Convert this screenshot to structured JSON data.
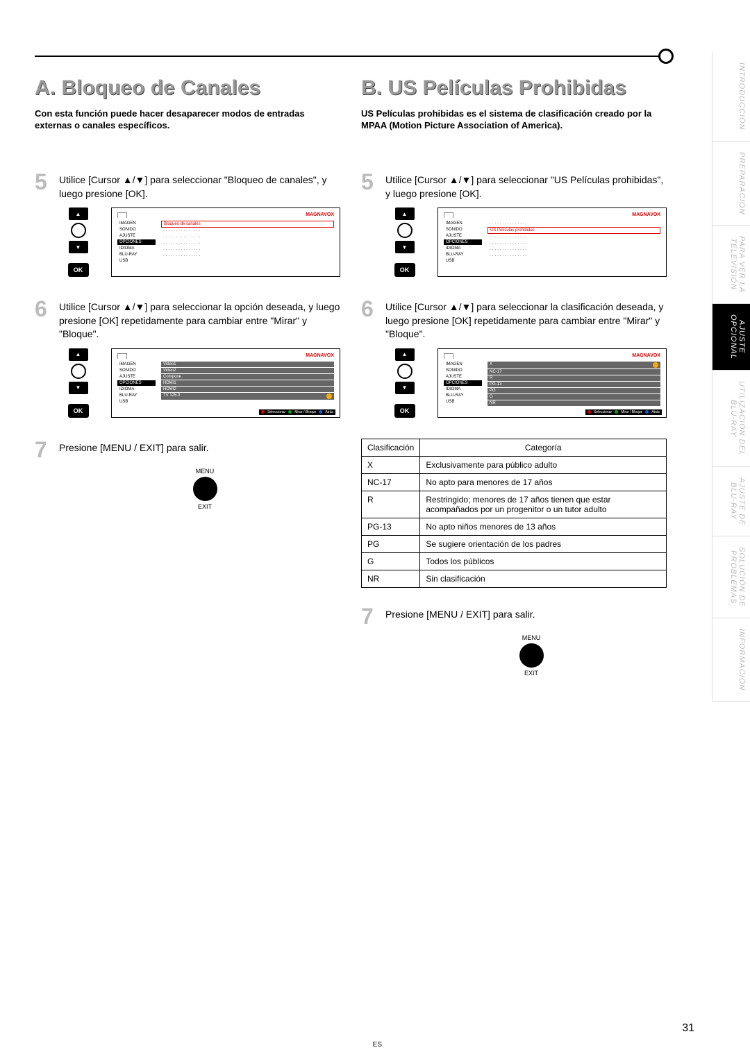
{
  "page_number": "31",
  "page_lang": "ES",
  "brand": "MAGNAVOX",
  "left": {
    "title": "A. Bloqueo de Canales",
    "intro": "Con esta función puede hacer desaparecer modos de entradas externas o canales específicos.",
    "step5": "Utilice [Cursor ▲/▼] para seleccionar \"Bloqueo de canales\", y luego presione [OK].",
    "step6": "Utilice [Cursor ▲/▼] para seleccionar la opción deseada, y luego presione [OK] repetidamente para cambiar entre \"Mirar\" y \"Bloque\".",
    "step7": "Presione [MENU / EXIT] para salir."
  },
  "right": {
    "title": "B. US Películas Prohibidas",
    "intro": "US Películas prohibidas es el sistema de clasificación creado por la MPAA (Motion Picture Association of America).",
    "step5": "Utilice [Cursor ▲/▼] para seleccionar \"US Películas prohibidas\", y luego presione [OK].",
    "step6": "Utilice [Cursor ▲/▼] para seleccionar la clasificación deseada, y luego presione [OK] repetidamente para cambiar entre \"Mirar\" y \"Bloque\".",
    "step7": "Presione [MENU / EXIT] para salir."
  },
  "tv_menu": {
    "left_items": [
      "IMAGEN",
      "SONIDO",
      "AJUSTE",
      "OPCIONES",
      "IDIOMA",
      "BLU-RAY",
      "USB"
    ],
    "selected": "OPCIONES",
    "hl_a": "Bloqueo de canales",
    "hl_b": "US Películas prohibidas",
    "footer_sel": "Seleccionar",
    "footer_mb": "Mirar / Bloque",
    "footer_back": "Atrás",
    "channels": [
      "Video1",
      "Video2",
      "Compone",
      "HDMI1",
      "HDMI2",
      "TV 125.0"
    ],
    "ratings_rows": [
      "X",
      "NC-17",
      "R",
      "PG-13",
      "PG",
      "G",
      "NR"
    ]
  },
  "remote": {
    "ok": "OK"
  },
  "menu_btn": {
    "top": "MENU",
    "bottom": "EXIT"
  },
  "ratings": {
    "h1": "Clasificación",
    "h2": "Categoría",
    "rows": [
      {
        "c": "X",
        "d": "Exclusivamente para público adulto"
      },
      {
        "c": "NC-17",
        "d": "No apto para menores de 17 años"
      },
      {
        "c": "R",
        "d": "Restringido; menores de 17 años tienen que estar acompañados por un progenitor o un tutor adulto"
      },
      {
        "c": "PG-13",
        "d": "No apto niños menores de 13 años"
      },
      {
        "c": "PG",
        "d": "Se sugiere orientación de los padres"
      },
      {
        "c": "G",
        "d": "Todos los públicos"
      },
      {
        "c": "NR",
        "d": "Sin clasificación"
      }
    ]
  },
  "side_tabs": [
    "INTRODUCCIÓN",
    "PREPARACIÓN",
    "PARA VER LA\nTELEVISIÓN",
    "AJUSTE\nOPCIONAL",
    "UTILIZACIÓN DEL\nBLU-RAY",
    "AJUSTE DE\nBLU-RAY",
    "SOLUCIÓN DE\nPROBLEMAS",
    "INFORMACIÓN"
  ],
  "side_active_index": 3
}
